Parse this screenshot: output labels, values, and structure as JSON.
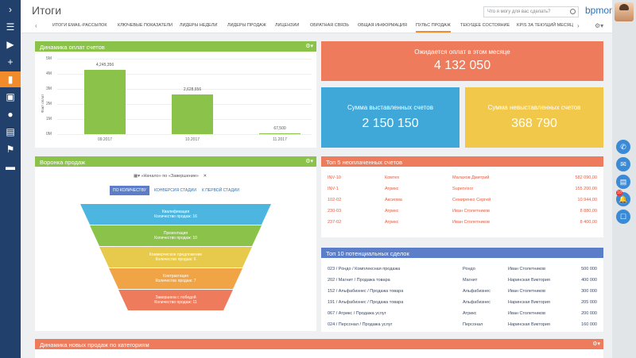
{
  "app": {
    "title": "Итоги",
    "logo": "bpmonline",
    "search_placeholder": "Что я могу для вас сделать?"
  },
  "nav_icons": [
    "chevron-right-icon",
    "menu-icon",
    "play-icon",
    "plus-icon",
    "analytics-icon",
    "contacts-card-icon",
    "person-icon",
    "org-icon",
    "flag-icon",
    "chat-icon"
  ],
  "tabs": [
    "ИТОГИ EMAIL-РАССЫЛОК",
    "КЛЮЧЕВЫЕ ПОКАЗАТЕЛИ",
    "ЛИДЕРЫ НЕДЕЛИ",
    "ЛИДЕРЫ ПРОДАЖ",
    "ЛИЦЕНЗИИ",
    "ОБРАТНАЯ СВЯЗЬ",
    "ОБЩАЯ ИНФОРМАЦИЯ",
    "ПУЛЬС ПРОДАЖ",
    "ТЕКУЩЕЕ СОСТОЯНИЕ",
    "KPIS ЗА ТЕКУЩИЙ МЕСЯЦ"
  ],
  "active_tab": "ПУЛЬС ПРОДАЖ",
  "payments": {
    "title": "Динамика оплат счетов",
    "ylabel": "Факт оплат",
    "chart_data": {
      "type": "bar",
      "categories": [
        "09.2017",
        "10.2017",
        "11.2017"
      ],
      "values": [
        4245356,
        2628656,
        67500
      ],
      "value_labels": [
        "4,245,356",
        "2,628,656",
        "67,500"
      ],
      "yticks": [
        "0M",
        "1M",
        "2M",
        "3M",
        "4M",
        "5M"
      ],
      "ylim": [
        0,
        5000000
      ],
      "color": "#8bc34a"
    }
  },
  "kpis": {
    "expected": {
      "title": "Ожидается оплат в этом месяце",
      "value": "4 132 050",
      "color": "#ee7b5b"
    },
    "invoiced": {
      "title": "Сумма выставленных счетов",
      "value": "2 150 150",
      "color": "#3fa8d8"
    },
    "not_invoiced": {
      "title": "Сумма невыставленных счетов",
      "value": "368 790",
      "color": "#f2c84b"
    }
  },
  "funnel": {
    "title": "Воронка продаж",
    "filter": "«Начало» по «Завершение»",
    "tabs": [
      "ПО КОЛИЧЕСТВУ",
      "КОНВЕРСИЯ СТАДИИ",
      "К ПЕРВОЙ СТАДИИ"
    ],
    "stages": [
      {
        "name": "Квалификация",
        "count": "Количество продаж: 16",
        "color": "#4db6e0"
      },
      {
        "name": "Презентация",
        "count": "Количество продаж: 10",
        "color": "#8bc34a"
      },
      {
        "name": "Коммерческое предложение",
        "count": "Количество продаж: 6",
        "color": "#e7c94b"
      },
      {
        "name": "Контрактация",
        "count": "Количество продаж: 7",
        "color": "#f0a445"
      },
      {
        "name": "Завершена с победой",
        "count": "Количество продаж: 11",
        "color": "#ee7b5b"
      }
    ]
  },
  "top5": {
    "title": "Топ 5 неоплаченных счетов",
    "rows": [
      [
        "INV-10",
        "Комтех",
        "Малахов Дмитрий",
        "582 090,00"
      ],
      [
        "INV-1",
        "Атрикс",
        "Supervisor",
        "155 200,00"
      ],
      [
        "102-02",
        "Аксиома",
        "Семиренко Сергей",
        "10 944,00"
      ],
      [
        "230-03",
        "Атрикс",
        "Иван Столетников",
        "8 880,00"
      ],
      [
        "237-02",
        "Атрикс",
        "Иван Столетников",
        "8 400,00"
      ]
    ]
  },
  "top10": {
    "title": "Топ 10 потенциальных сделок",
    "rows": [
      [
        "023 / Рондо / Комплексная продажа",
        "Рондо",
        "Иван Столетников",
        "500 000"
      ],
      [
        "202 / Магнит / Продажа товара",
        "Магнит",
        "Наринская Виктория",
        "400 000"
      ],
      [
        "152 / Альфабизнес / Продажа товара",
        "Альфабизнес",
        "Иван Столетников",
        "300 000"
      ],
      [
        "191 / Альфабизнес / Продажа товара",
        "Альфабизнес",
        "Наринская Виктория",
        "205 000"
      ],
      [
        "067 / Атрикс / Продажа услуг",
        "Атрикс",
        "Иван Столетников",
        "200 000"
      ],
      [
        "024 / Персонал / Продажа услуг",
        "Персонал",
        "Наринская Виктория",
        "160 000"
      ]
    ]
  },
  "new_sales": {
    "title": "Динамика новых продаж по категориям"
  },
  "right_panel": {
    "badge": "10"
  }
}
